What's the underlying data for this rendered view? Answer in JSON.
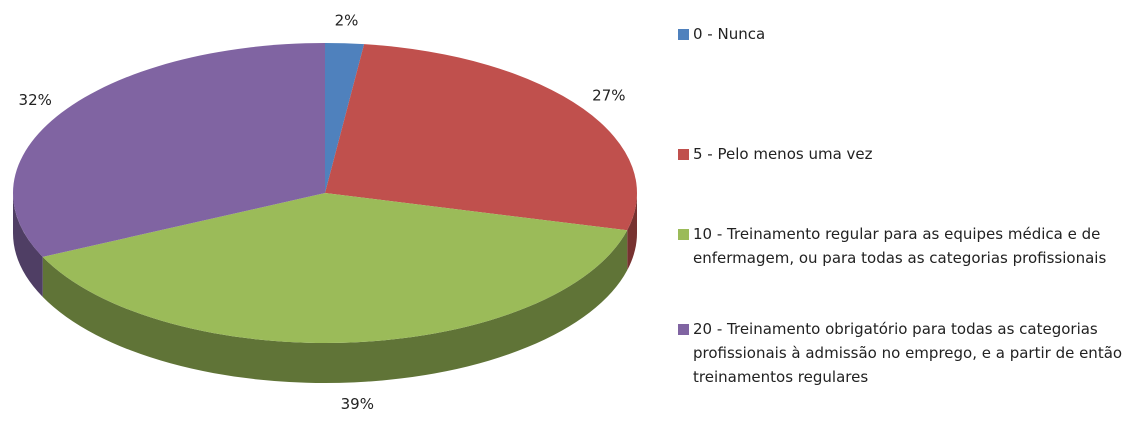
{
  "chart_data": {
    "type": "pie",
    "categories": [
      "0 - Nunca",
      "5 - Pelo menos uma vez",
      "10 - Treinamento regular para as equipes médica e de enfermagem, ou para todas as categorias profissionais",
      "20 - Treinamento obrigatório para todas as categorias profissionais à admissão no emprego, e a partir de então treinamentos regulares"
    ],
    "values": [
      2,
      27,
      39,
      32
    ],
    "value_labels": [
      "2%",
      "27%",
      "39%",
      "32%"
    ],
    "colors": [
      "#4f81bd",
      "#c0504d",
      "#9bbb59",
      "#8064a2"
    ],
    "legend": "right"
  }
}
